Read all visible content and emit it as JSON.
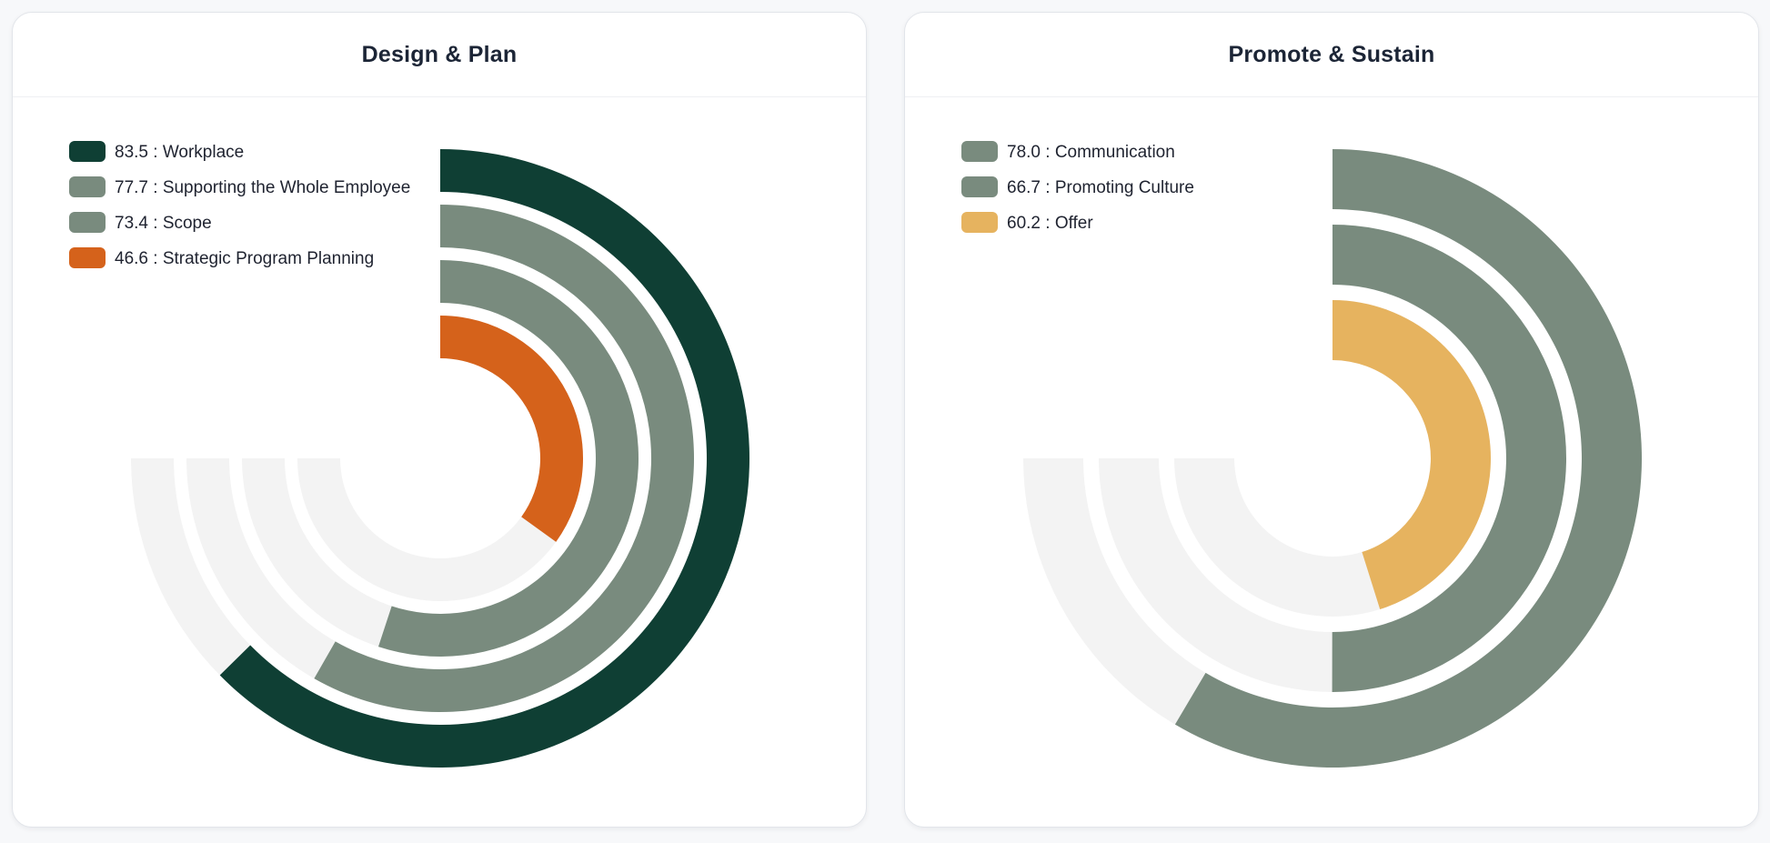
{
  "charts": [
    {
      "title": "Design & Plan",
      "chart_data": {
        "type": "radial-bar",
        "max": 100,
        "series": [
          {
            "name": "Workplace",
            "value": 83.5,
            "label": "83.5 : Workplace",
            "color": "#0f3f34"
          },
          {
            "name": "Supporting the Whole Employee",
            "value": 77.7,
            "label": "77.7 : Supporting the Whole Employee",
            "color": "#798b7e"
          },
          {
            "name": "Scope",
            "value": 73.4,
            "label": "73.4 : Scope",
            "color": "#798b7e"
          },
          {
            "name": "Strategic Program Planning",
            "value": 46.6,
            "label": "46.6 : Strategic Program Planning",
            "color": "#d5621b"
          }
        ],
        "track_color": "#f3f3f3",
        "legend_position": "top-left"
      }
    },
    {
      "title": "Promote & Sustain",
      "chart_data": {
        "type": "radial-bar",
        "max": 100,
        "series": [
          {
            "name": "Communication",
            "value": 78.0,
            "label": "78.0 : Communication",
            "color": "#798b7e"
          },
          {
            "name": "Promoting Culture",
            "value": 66.7,
            "label": "66.7 : Promoting Culture",
            "color": "#798b7e"
          },
          {
            "name": "Offer",
            "value": 60.2,
            "label": "60.2 : Offer",
            "color": "#e6b35f"
          }
        ],
        "track_color": "#f3f3f3",
        "legend_position": "top-left"
      }
    }
  ]
}
